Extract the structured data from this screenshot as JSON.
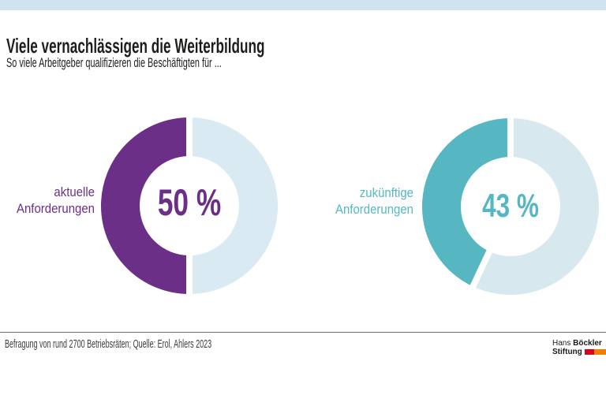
{
  "page": {
    "title": "Viele vernachlässigen die Weiterbildung",
    "subtitle": "So viele Arbeitgeber qualifizieren die Beschäftigten für ...",
    "footer_source": "Befragung von rund 2700 Betriebsräten; Quelle: Erol, Ahlers 2023",
    "logo": {
      "hans": "Hans",
      "boeckler": "Böckler",
      "stiftung": "Stiftung"
    }
  },
  "colors": {
    "topbar": "#cfe4ef",
    "title_text": "#1d1d1b",
    "footer_text": "#3c3c3b",
    "rule": "#6e6e6d",
    "logo_red": "#da0019",
    "logo_orange": "#f07e00",
    "gap_white": "#ffffff"
  },
  "chart_data": [
    {
      "type": "pie",
      "style": "donut",
      "title": "aktuelle Anforderungen",
      "label_lines": [
        "aktuelle",
        "Anforderungen"
      ],
      "value_percent": 50,
      "remainder_percent": 50,
      "center_label": "50 %",
      "segment_color": "#6c2f87",
      "remainder_color": "#d9eaf2",
      "start": "top",
      "direction": "counterclockwise"
    },
    {
      "type": "pie",
      "style": "donut",
      "title": "zukünftige Anforderungen",
      "label_lines": [
        "zukünftige",
        "Anforderungen"
      ],
      "value_percent": 43,
      "remainder_percent": 57,
      "center_label": "43 %",
      "segment_color": "#56b7c3",
      "remainder_color": "#d7e9ee",
      "start": "top",
      "direction": "counterclockwise"
    }
  ]
}
